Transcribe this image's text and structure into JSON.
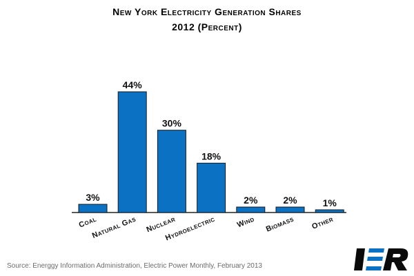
{
  "header": {
    "title_line1": "New York Electricity Generation Shares",
    "title_line2": "2012 (Percent)"
  },
  "chart_data": {
    "type": "bar",
    "categories": [
      "Coal",
      "Natural Gas",
      "Nuclear",
      "Hydroelectric",
      "Wind",
      "Biomass",
      "Other"
    ],
    "values": [
      3,
      44,
      30,
      18,
      2,
      2,
      1
    ],
    "value_labels": [
      "3%",
      "44%",
      "30%",
      "18%",
      "2%",
      "2%",
      "1%"
    ],
    "title": "New York Electricity Generation Shares 2012 (Percent)",
    "xlabel": "",
    "ylabel": "",
    "ylim": [
      0,
      44
    ],
    "grid": false,
    "bar_color": "#0b72c3"
  },
  "footer": {
    "source": "Source: Energgy Information Administration, Electric Power Monthly, February 2013",
    "logo_text": "IER"
  }
}
